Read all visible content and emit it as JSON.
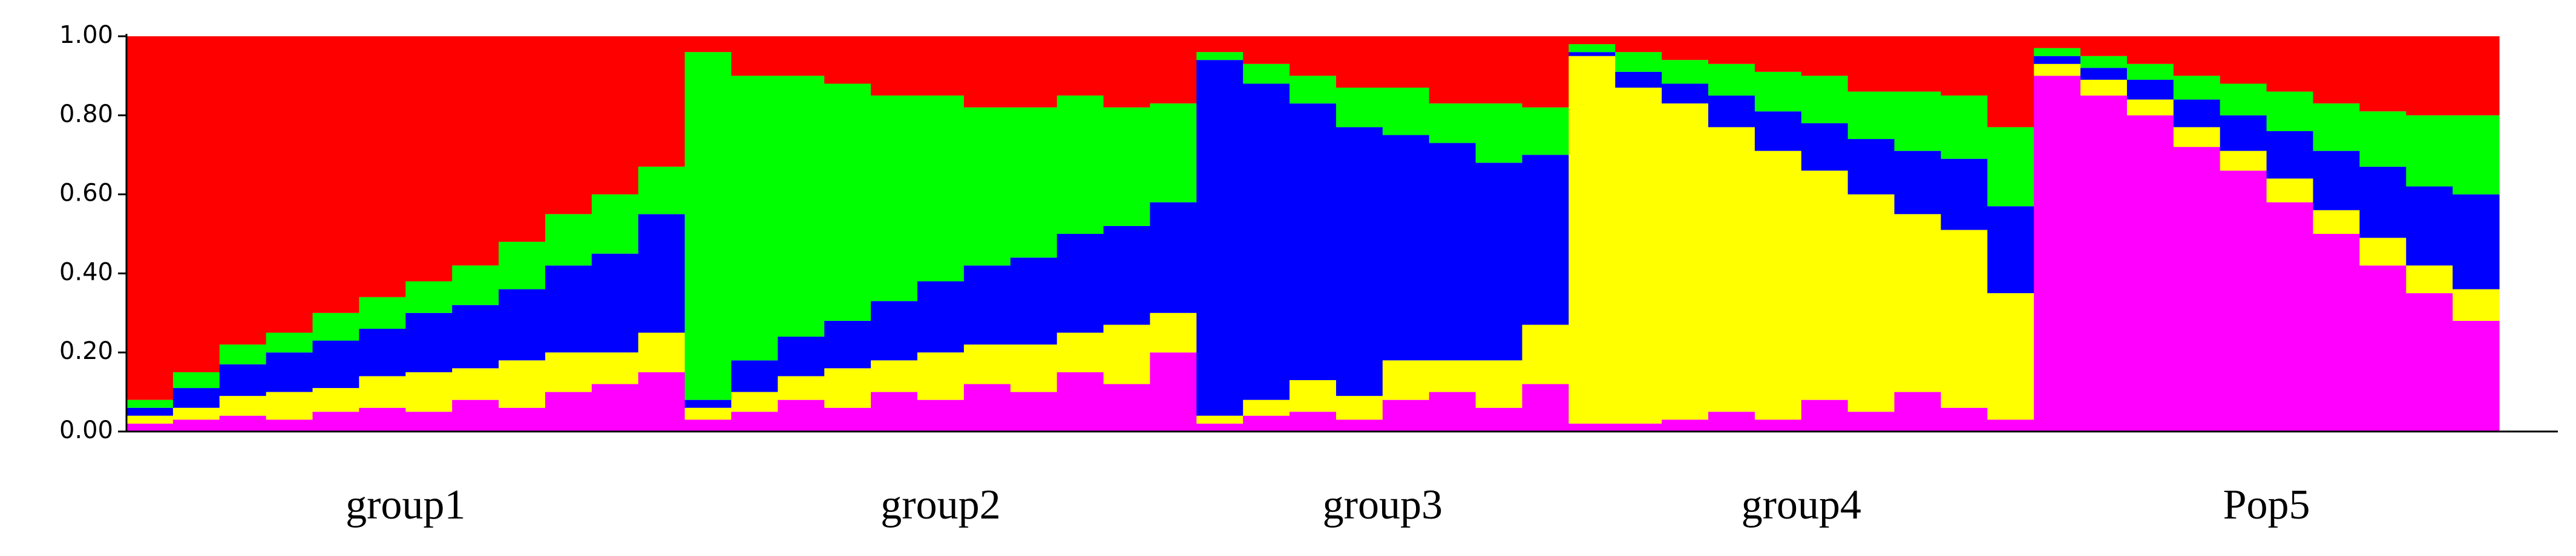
{
  "chart_data": {
    "type": "structure-bar",
    "ylim": [
      0,
      1
    ],
    "yticks": [
      {
        "value": 0,
        "label": "0.00"
      },
      {
        "value": 0.2,
        "label": "0.20"
      },
      {
        "value": 0.4,
        "label": "0.40"
      },
      {
        "value": 0.6,
        "label": "0.60"
      },
      {
        "value": 0.8,
        "label": "0.80"
      },
      {
        "value": 1,
        "label": "1.00"
      }
    ],
    "colors": [
      "#ff00ff",
      "#ffff00",
      "#0000ff",
      "#00ff00",
      "#ff0000"
    ],
    "groups": [
      {
        "name": "group1",
        "values": [
          [
            0.02,
            0.02,
            0.02,
            0.02,
            0.92
          ],
          [
            0.03,
            0.03,
            0.05,
            0.04,
            0.85
          ],
          [
            0.04,
            0.05,
            0.08,
            0.05,
            0.78
          ],
          [
            0.03,
            0.07,
            0.1,
            0.05,
            0.75
          ],
          [
            0.05,
            0.06,
            0.12,
            0.07,
            0.7
          ],
          [
            0.06,
            0.08,
            0.12,
            0.08,
            0.66
          ],
          [
            0.05,
            0.1,
            0.15,
            0.08,
            0.62
          ],
          [
            0.08,
            0.08,
            0.16,
            0.1,
            0.58
          ],
          [
            0.06,
            0.12,
            0.18,
            0.12,
            0.52
          ],
          [
            0.1,
            0.1,
            0.22,
            0.13,
            0.45
          ],
          [
            0.12,
            0.08,
            0.25,
            0.15,
            0.4
          ],
          [
            0.15,
            0.1,
            0.3,
            0.12,
            0.33
          ]
        ]
      },
      {
        "name": "group2",
        "values": [
          [
            0.03,
            0.03,
            0.02,
            0.88,
            0.04
          ],
          [
            0.05,
            0.05,
            0.08,
            0.72,
            0.1
          ],
          [
            0.08,
            0.06,
            0.1,
            0.66,
            0.1
          ],
          [
            0.06,
            0.1,
            0.12,
            0.6,
            0.12
          ],
          [
            0.1,
            0.08,
            0.15,
            0.52,
            0.15
          ],
          [
            0.08,
            0.12,
            0.18,
            0.47,
            0.15
          ],
          [
            0.12,
            0.1,
            0.2,
            0.4,
            0.18
          ],
          [
            0.1,
            0.12,
            0.22,
            0.38,
            0.18
          ],
          [
            0.15,
            0.1,
            0.25,
            0.35,
            0.15
          ],
          [
            0.12,
            0.15,
            0.25,
            0.3,
            0.18
          ],
          [
            0.2,
            0.1,
            0.28,
            0.25,
            0.17
          ]
        ]
      },
      {
        "name": "group3",
        "values": [
          [
            0.02,
            0.02,
            0.9,
            0.02,
            0.04
          ],
          [
            0.04,
            0.04,
            0.8,
            0.05,
            0.07
          ],
          [
            0.05,
            0.08,
            0.7,
            0.07,
            0.1
          ],
          [
            0.03,
            0.06,
            0.68,
            0.1,
            0.13
          ],
          [
            0.08,
            0.1,
            0.57,
            0.12,
            0.13
          ],
          [
            0.1,
            0.08,
            0.55,
            0.1,
            0.17
          ],
          [
            0.06,
            0.12,
            0.5,
            0.15,
            0.17
          ],
          [
            0.12,
            0.15,
            0.43,
            0.12,
            0.18
          ]
        ]
      },
      {
        "name": "group4",
        "values": [
          [
            0.02,
            0.93,
            0.01,
            0.02,
            0.02
          ],
          [
            0.02,
            0.85,
            0.04,
            0.05,
            0.04
          ],
          [
            0.03,
            0.8,
            0.05,
            0.06,
            0.06
          ],
          [
            0.05,
            0.72,
            0.08,
            0.08,
            0.07
          ],
          [
            0.03,
            0.68,
            0.1,
            0.1,
            0.09
          ],
          [
            0.08,
            0.58,
            0.12,
            0.12,
            0.1
          ],
          [
            0.05,
            0.55,
            0.14,
            0.12,
            0.14
          ],
          [
            0.1,
            0.45,
            0.16,
            0.15,
            0.14
          ],
          [
            0.06,
            0.45,
            0.18,
            0.16,
            0.15
          ],
          [
            0.03,
            0.32,
            0.22,
            0.2,
            0.23
          ]
        ]
      },
      {
        "name": "Pop5",
        "values": [
          [
            0.9,
            0.03,
            0.02,
            0.02,
            0.03
          ],
          [
            0.85,
            0.04,
            0.03,
            0.03,
            0.05
          ],
          [
            0.8,
            0.04,
            0.05,
            0.04,
            0.07
          ],
          [
            0.72,
            0.05,
            0.07,
            0.06,
            0.1
          ],
          [
            0.66,
            0.05,
            0.09,
            0.08,
            0.12
          ],
          [
            0.58,
            0.06,
            0.12,
            0.1,
            0.14
          ],
          [
            0.5,
            0.06,
            0.15,
            0.12,
            0.17
          ],
          [
            0.42,
            0.07,
            0.18,
            0.14,
            0.19
          ],
          [
            0.35,
            0.07,
            0.2,
            0.18,
            0.2
          ],
          [
            0.28,
            0.08,
            0.24,
            0.2,
            0.2
          ]
        ]
      }
    ]
  }
}
